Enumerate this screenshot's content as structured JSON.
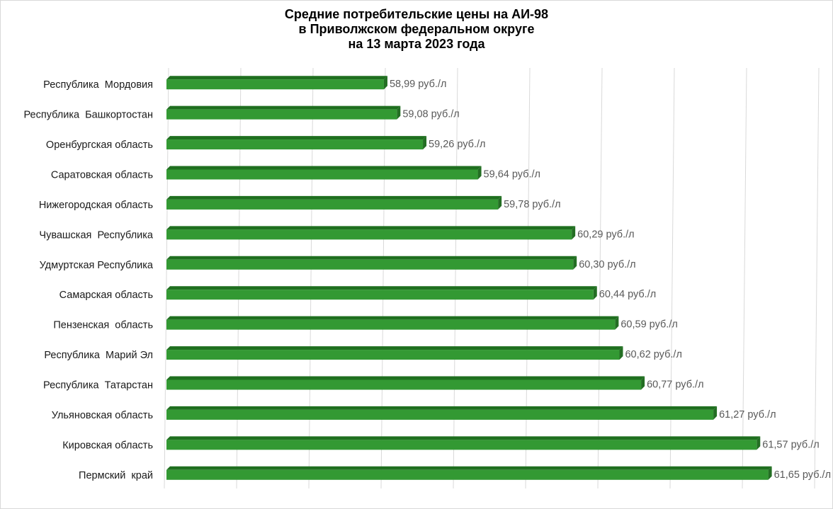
{
  "chart_data": {
    "type": "bar",
    "orientation": "horizontal",
    "title_lines": [
      "Средние потребительские цены на АИ-98",
      "в Приволжском федеральном округе",
      "на 13 марта 2023 года"
    ],
    "categories": [
      "Республика  Мордовия",
      "Республика  Башкортостан",
      "Оренбургская область",
      "Саратовская область",
      "Нижегородская область",
      "Чувашская  Республика",
      "Удмуртская Республика",
      "Самарская область",
      "Пензенская  область",
      "Республика  Марий Эл",
      "Республика  Татарстан",
      "Ульяновская область",
      "Кировская область",
      "Пермский  край"
    ],
    "values": [
      58.99,
      59.08,
      59.26,
      59.64,
      59.78,
      60.29,
      60.3,
      60.44,
      60.59,
      60.62,
      60.77,
      61.27,
      61.57,
      61.65
    ],
    "value_labels": [
      "58,99 руб./л",
      "59,08 руб./л",
      "59,26 руб./л",
      "59,64 руб./л",
      "59,78 руб./л",
      "60,29 руб./л",
      "60,30 руб./л",
      "60,44 руб./л",
      "60,59 руб./л",
      "60,62 руб./л",
      "60,77 руб./л",
      "61,27 руб./л",
      "61,57 руб./л",
      "61,65 руб./л"
    ],
    "xlim": [
      57.5,
      62.0
    ],
    "grid": true,
    "bar_color": "#339933",
    "bar_top_color": "#1f6f1f",
    "bar_side_color": "#236e23",
    "gridline_color": "#d9d9d9"
  }
}
